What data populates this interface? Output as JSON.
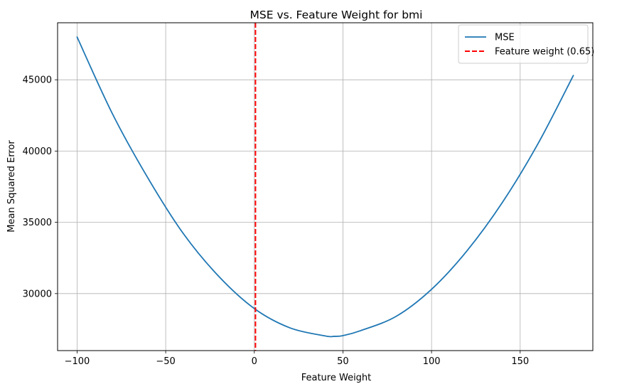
{
  "chart_data": {
    "type": "line",
    "title": "MSE vs. Feature Weight for bmi",
    "xlabel": "Feature Weight",
    "ylabel": "Mean Squared Error",
    "xlim": [
      -111,
      191
    ],
    "ylim": [
      26000,
      49000
    ],
    "xticks": [
      -100,
      -50,
      0,
      50,
      100,
      150
    ],
    "xtick_labels": [
      "−100",
      "−50",
      "0",
      "50",
      "100",
      "150"
    ],
    "yticks": [
      30000,
      35000,
      40000,
      45000
    ],
    "ytick_labels": [
      "30000",
      "35000",
      "40000",
      "45000"
    ],
    "grid": true,
    "legend_position": "top-right",
    "series": [
      {
        "name": "MSE",
        "color": "#1f77b4",
        "style": "solid",
        "x": [
          -100,
          -80,
          -60,
          -40,
          -20,
          0,
          20,
          40,
          45,
          50,
          60,
          80,
          100,
          120,
          140,
          160,
          180
        ],
        "y": [
          48000,
          42600,
          38100,
          34200,
          31200,
          28950,
          27600,
          27030,
          27000,
          27050,
          27400,
          28400,
          30300,
          33000,
          36400,
          40500,
          45300
        ]
      }
    ],
    "vlines": [
      {
        "name": "Feature weight (0.65)",
        "x": 0.65,
        "color": "#ff0000",
        "style": "dashed"
      }
    ]
  }
}
